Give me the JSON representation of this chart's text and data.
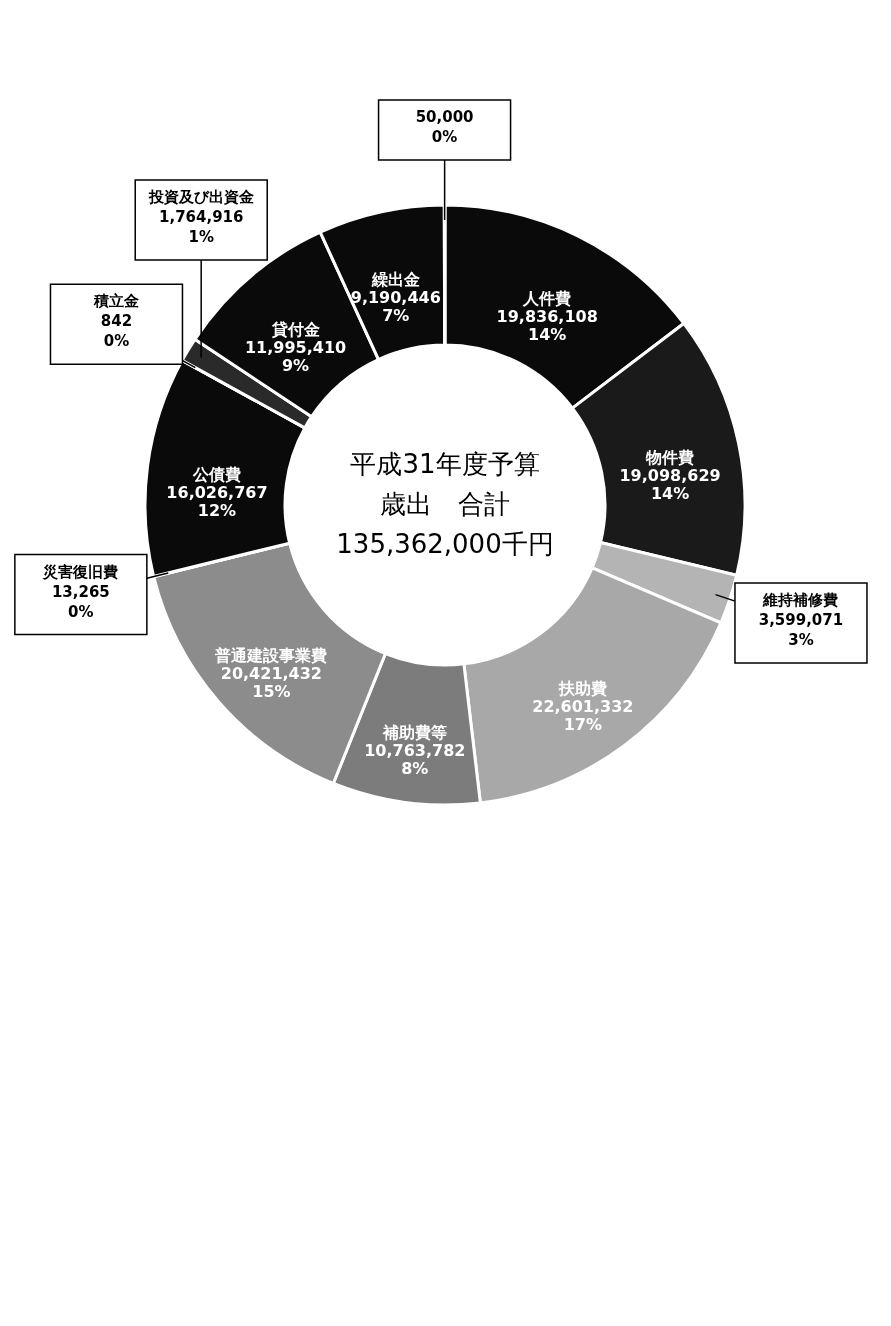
{
  "chart_data": {
    "type": "donut",
    "categories": [
      "人件費",
      "物件費",
      "維持補修費",
      "扶助費",
      "補助費等",
      "普通建設事業費",
      "災害復旧費",
      "公債費",
      "積立金",
      "投資及び出資金",
      "貸付金",
      "繰出金",
      null
    ],
    "values": [
      19836108,
      19098629,
      3599071,
      22601332,
      10763782,
      20421432,
      13265,
      16026767,
      842,
      1764916,
      11995410,
      9190446,
      50000
    ],
    "colors": [
      "#0a0a0a",
      "#1a1a1a",
      "#b4b4b4",
      "#a8a8a8",
      "#7c7c7c",
      "#8c8c8c",
      "#8c8c8c",
      "#0a0a0a",
      "#3a3a3a",
      "#2a2a2a",
      "#0a0a0a",
      "#0a0a0a",
      "#0a0a0a"
    ],
    "value_labels": [
      "19,836,108\n14%",
      "19,098,629\n14%",
      "3,599,071\n3%",
      "22,601,332\n17%",
      "10,763,782\n8%",
      "20,421,432\n15%",
      "13,265\n0%",
      "16,026,767\n12%",
      "842\n0%",
      "1,764,916\n1%",
      "11,995,410\n9%",
      "9,190,446\n7%",
      "50,000\n0%"
    ],
    "annotations": [
      "平成31年度予算",
      "歳出　合計",
      "135,362,000千円"
    ]
  }
}
